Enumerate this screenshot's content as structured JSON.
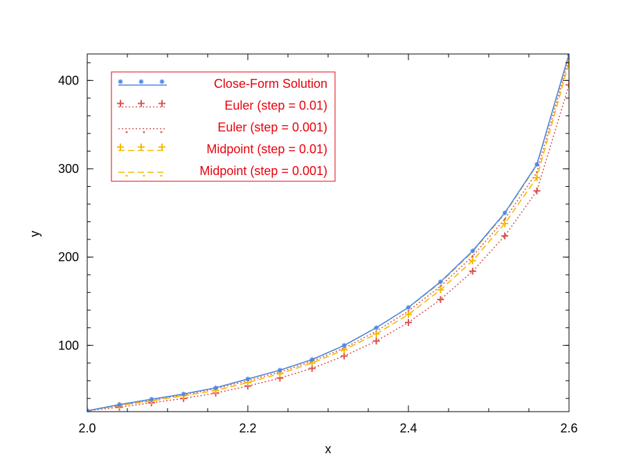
{
  "chart_data": {
    "type": "line",
    "title": "",
    "xlabel": "x",
    "ylabel": "y",
    "xlim": [
      2.0,
      2.6
    ],
    "ylim": [
      25,
      430
    ],
    "xticks": [
      2.0,
      2.2,
      2.4,
      2.6
    ],
    "xtick_labels": [
      "2.0",
      "2.2",
      "2.4",
      "2.6"
    ],
    "yticks": [
      100,
      200,
      300,
      400
    ],
    "ytick_labels": [
      "100",
      "200",
      "300",
      "400"
    ],
    "grid": false,
    "legend_position": "top-left",
    "legend_text_color": "#e8000b",
    "series": [
      {
        "name": "Close-Form Solution",
        "color": "#4a86e8",
        "line_style": "solid",
        "marker": "star",
        "x": [
          2.0,
          2.04,
          2.08,
          2.12,
          2.16,
          2.2,
          2.24,
          2.28,
          2.32,
          2.36,
          2.4,
          2.44,
          2.48,
          2.52,
          2.56,
          2.6
        ],
        "y": [
          26,
          33,
          39,
          45,
          52,
          62,
          72,
          84,
          100,
          120,
          143,
          172,
          207,
          250,
          305,
          430
        ]
      },
      {
        "name": "Euler (step = 0.01)",
        "color": "#d9534f",
        "line_style": "dotted",
        "marker": "plus",
        "x": [
          2.0,
          2.04,
          2.08,
          2.12,
          2.16,
          2.2,
          2.24,
          2.28,
          2.32,
          2.36,
          2.4,
          2.44,
          2.48,
          2.52,
          2.56,
          2.6
        ],
        "y": [
          26,
          30,
          35,
          40,
          46,
          54,
          63,
          74,
          88,
          105,
          126,
          152,
          184,
          224,
          275,
          395
        ]
      },
      {
        "name": "Euler (step = 0.001)",
        "color": "#d9534f",
        "line_style": "dotted",
        "marker": "dot",
        "x": [
          2.0,
          2.04,
          2.08,
          2.12,
          2.16,
          2.2,
          2.24,
          2.28,
          2.32,
          2.36,
          2.4,
          2.44,
          2.48,
          2.52,
          2.56,
          2.6
        ],
        "y": [
          26,
          32,
          38,
          44,
          51,
          60,
          70,
          82,
          97,
          116,
          139,
          167,
          201,
          243,
          296,
          425
        ]
      },
      {
        "name": "Midpoint (step = 0.01)",
        "color": "#f5b800",
        "line_style": "dashed",
        "marker": "plus",
        "x": [
          2.0,
          2.04,
          2.08,
          2.12,
          2.16,
          2.2,
          2.24,
          2.28,
          2.32,
          2.36,
          2.4,
          2.44,
          2.48,
          2.52,
          2.56,
          2.6
        ],
        "y": [
          26,
          32,
          37,
          43,
          49,
          58,
          68,
          80,
          95,
          113,
          135,
          163,
          196,
          238,
          290,
          420
        ]
      },
      {
        "name": "Midpoint (step = 0.001)",
        "color": "#f5b800",
        "line_style": "dashed",
        "marker": "dot",
        "x": [
          2.0,
          2.04,
          2.08,
          2.12,
          2.16,
          2.2,
          2.24,
          2.28,
          2.32,
          2.36,
          2.4,
          2.44,
          2.48,
          2.52,
          2.56,
          2.6
        ],
        "y": [
          26,
          33,
          39,
          45,
          52,
          62,
          72,
          84,
          100,
          120,
          143,
          171,
          206,
          249,
          304,
          429
        ]
      }
    ]
  }
}
